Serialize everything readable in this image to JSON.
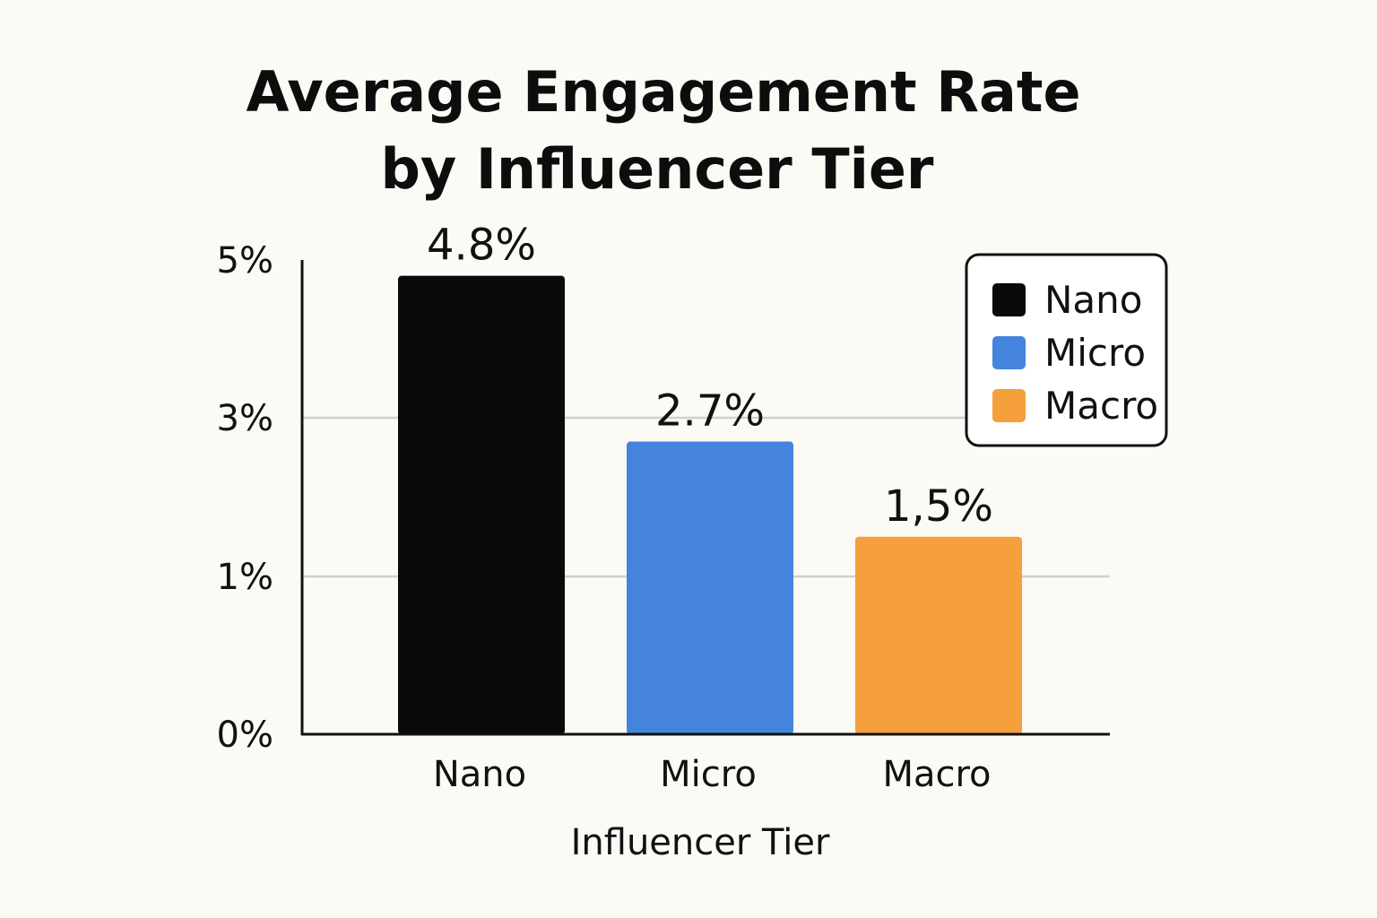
{
  "chart_data": {
    "type": "bar",
    "title_lines": [
      "Average Engagement Rate",
      "by Influencer Tier"
    ],
    "xlabel": "Influencer Tier",
    "ylabel": "",
    "categories": [
      "Nano",
      "Micro",
      "Macro"
    ],
    "values": [
      4.8,
      2.7,
      1.5
    ],
    "value_labels": [
      "4.8%",
      "2.7%",
      "1,5%"
    ],
    "colors": [
      "#0a0a0a",
      "#4584dc",
      "#f5a03c"
    ],
    "yticks": [
      {
        "value": 0,
        "label": "0%"
      },
      {
        "value": 1,
        "label": "1%"
      },
      {
        "value": 3,
        "label": "3%"
      },
      {
        "value": 5,
        "label": "5%"
      }
    ],
    "gridlines": [
      1,
      3
    ],
    "legend": {
      "position": "top-right",
      "entries": [
        {
          "label": "Nano",
          "color": "#0a0a0a"
        },
        {
          "label": "Micro",
          "color": "#4584dc"
        },
        {
          "label": "Macro",
          "color": "#f5a03c"
        }
      ]
    }
  }
}
